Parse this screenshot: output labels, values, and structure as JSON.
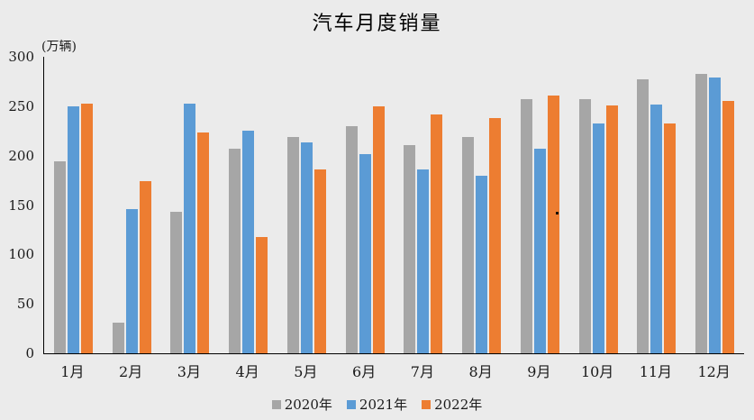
{
  "colors": {
    "background": "#ebebeb",
    "axis_line": "#000000",
    "text": "#1a1a1a",
    "series_2020": "#a6a6a6",
    "series_2021": "#5b9bd5",
    "series_2022": "#ed7d31"
  },
  "chart_data": {
    "type": "bar",
    "title": "汽车月度销量",
    "ylabel": "(万辆)",
    "xlabel": "",
    "categories": [
      "1月",
      "2月",
      "3月",
      "4月",
      "5月",
      "6月",
      "7月",
      "8月",
      "9月",
      "10月",
      "11月",
      "12月"
    ],
    "series": [
      {
        "name": "2020年",
        "color": "#a6a6a6",
        "values": [
          194,
          31,
          143,
          207,
          219,
          230,
          211,
          219,
          257,
          257,
          277,
          283
        ]
      },
      {
        "name": "2021年",
        "color": "#5b9bd5",
        "values": [
          250,
          146,
          253,
          225,
          213,
          202,
          186,
          180,
          207,
          233,
          252,
          279
        ]
      },
      {
        "name": "2022年",
        "color": "#ed7d31",
        "values": [
          253,
          174,
          223,
          118,
          186,
          250,
          242,
          238,
          261,
          251,
          233,
          255
        ]
      }
    ],
    "ylim": [
      0,
      300
    ],
    "yticks": [
      0,
      50,
      100,
      150,
      200,
      250,
      300
    ],
    "grid": false,
    "legend_position": "bottom"
  }
}
